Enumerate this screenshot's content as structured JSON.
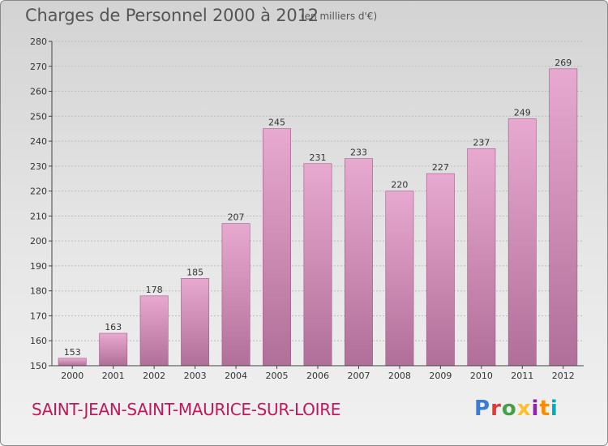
{
  "header": {
    "title": "Charges de Personnel 2000 à 2012",
    "subtitle": "(en milliers d'€)"
  },
  "footer": {
    "city": "SAINT-JEAN-SAINT-MAURICE-SUR-LOIRE",
    "logo": "Proxiti",
    "logo_colors": [
      "#3a7bd5",
      "#e53935",
      "#43a047",
      "#fbc02d",
      "#8e24aa",
      "#fb8c00",
      "#00acc1"
    ]
  },
  "colors": {
    "bar_top": "#e8a9d0",
    "bar_bottom": "#b06f98",
    "bar_edge": "#9d5b86",
    "grid": "#bdbdbd",
    "axis": "#444444"
  },
  "chart_data": {
    "type": "bar",
    "title": "Charges de Personnel 2000 à 2012",
    "subtitle": "(en milliers d'€)",
    "categories": [
      "2000",
      "2001",
      "2002",
      "2003",
      "2004",
      "2005",
      "2006",
      "2007",
      "2008",
      "2009",
      "2010",
      "2011",
      "2012"
    ],
    "values": [
      153,
      163,
      178,
      185,
      207,
      245,
      231,
      233,
      220,
      227,
      237,
      249,
      269
    ],
    "ylim": [
      150,
      280
    ],
    "yticks": [
      150,
      160,
      170,
      180,
      190,
      200,
      210,
      220,
      230,
      240,
      250,
      260,
      270,
      280
    ],
    "grid": true,
    "data_labels": true
  }
}
